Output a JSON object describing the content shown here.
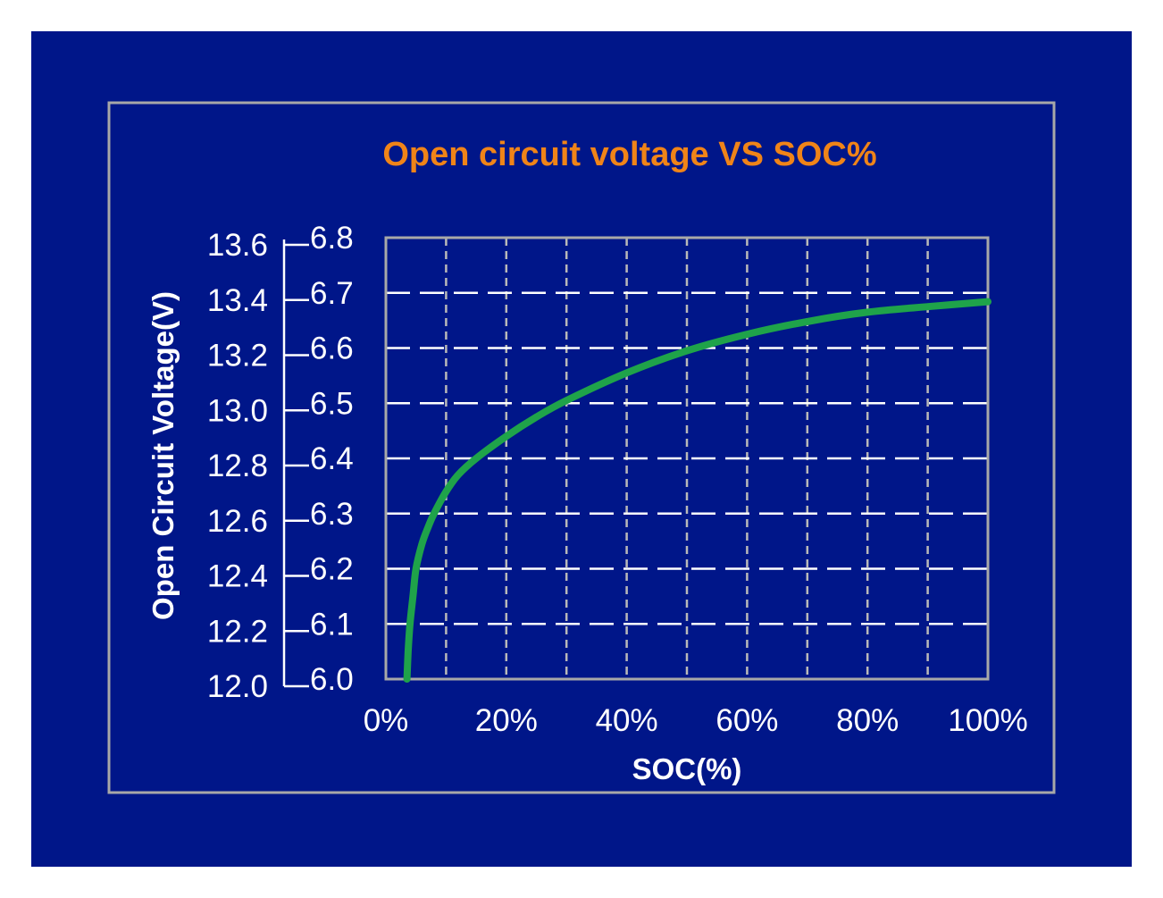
{
  "colors": {
    "background": "#ffffff",
    "slide_background": "#001689",
    "frame": "#a8a8a8",
    "grid": "#ffffff",
    "vertical_grid": "#b9b9b9",
    "plot_border": "#a8a8a8",
    "title": "#f08418",
    "text": "#ffffff",
    "curve": "#1fa34a"
  },
  "chart_data": {
    "type": "line",
    "title": "Open circuit voltage VS SOC%",
    "xlabel": "SOC(%)",
    "ylabel": "Open Circuit Voltage(V)",
    "xlim": [
      0,
      100
    ],
    "ylim": [
      6.0,
      6.8
    ],
    "x_tick_labels": [
      "0%",
      "20%",
      "40%",
      "60%",
      "80%",
      "100%"
    ],
    "y_tick_labels_outer": [
      "12.0",
      "12.2",
      "12.4",
      "12.6",
      "12.8",
      "13.0",
      "13.2",
      "13.4",
      "13.6"
    ],
    "y_tick_labels_inner": [
      "6.0",
      "6.1",
      "6.2",
      "6.3",
      "6.4",
      "6.5",
      "6.6",
      "6.7",
      "6.8"
    ],
    "grid": {
      "horizontal": "dashed, every 0.1 V (6.0–6.8 scale)",
      "vertical": "dashed, every 10%"
    },
    "series": [
      {
        "x": [
          3.5,
          3.7,
          4.0,
          4.5,
          5,
          6,
          7,
          8,
          10,
          12,
          15,
          20,
          25,
          30,
          40,
          50,
          60,
          70,
          80,
          90,
          100
        ],
        "y": [
          6.0,
          6.05,
          6.1,
          6.15,
          6.2,
          6.245,
          6.275,
          6.3,
          6.34,
          6.37,
          6.4,
          6.44,
          6.475,
          6.505,
          6.555,
          6.595,
          6.625,
          6.648,
          6.665,
          6.675,
          6.684
        ]
      }
    ]
  }
}
